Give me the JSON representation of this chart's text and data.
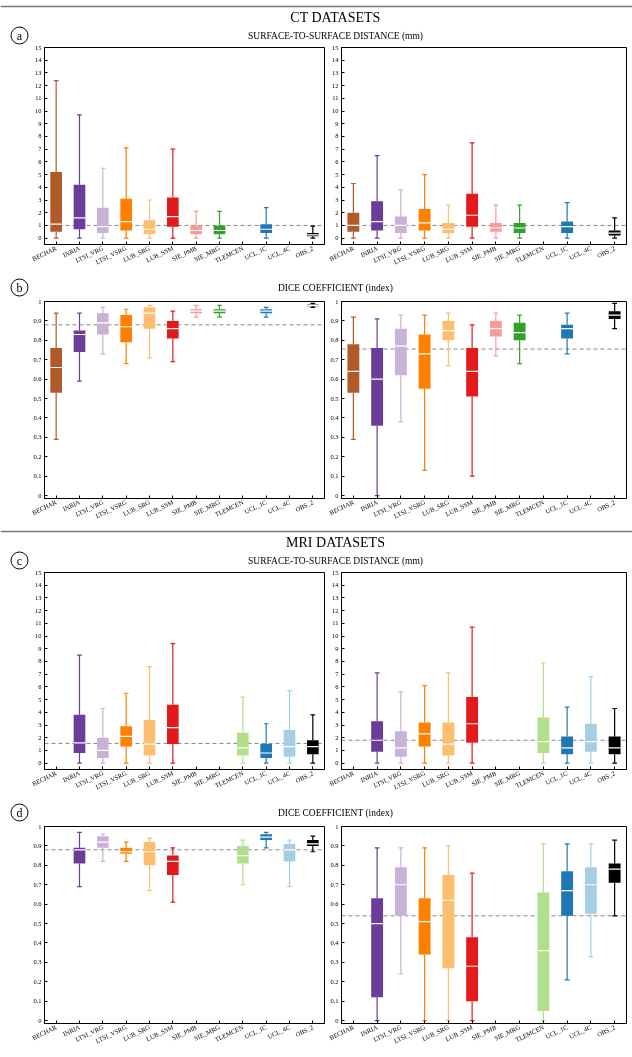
{
  "chart_data": [
    {
      "type": "box",
      "title": "CT DATASETS",
      "subtitle": "SURFACE-TO-SURFACE DISTANCE (mm)",
      "annotations": [
        "a"
      ],
      "categories": [
        "BECHAR",
        "INRIA",
        "LTSI_VRG",
        "LTSI_VSRG",
        "LUB_SRG",
        "LUB_SSM",
        "SIE_PMB",
        "SIE_MRG",
        "TLEMCEN",
        "UCL_1C",
        "UCL_4C",
        "OBS_2"
      ],
      "colors": [
        "#b15928",
        "#6a3d9a",
        "#cab2d6",
        "#ff7f00",
        "#fdbf6f",
        "#e31a1c",
        "#fb9a99",
        "#33a02c",
        null,
        "#1f78b4",
        null,
        "#000000"
      ],
      "boxes": [
        {
          "low": 0,
          "q1": 0.5,
          "median": 1.1,
          "q3": 5.2,
          "high": 12.4
        },
        {
          "low": 0,
          "q1": 0.7,
          "median": 1.6,
          "q3": 4.2,
          "high": 9.7
        },
        {
          "low": 0,
          "q1": 0.4,
          "median": 0.9,
          "q3": 2.4,
          "high": 5.5
        },
        {
          "low": 0,
          "q1": 0.6,
          "median": 1.3,
          "q3": 3.1,
          "high": 7.1
        },
        {
          "low": 0,
          "q1": 0.3,
          "median": 0.7,
          "q3": 1.4,
          "high": 3.0
        },
        {
          "low": 0,
          "q1": 0.9,
          "median": 1.7,
          "q3": 3.2,
          "high": 7.0
        },
        {
          "low": 0,
          "q1": 0.3,
          "median": 0.6,
          "q3": 1.0,
          "high": 2.1
        },
        {
          "low": 0,
          "q1": 0.3,
          "median": 0.6,
          "q3": 1.0,
          "high": 2.1
        },
        null,
        {
          "low": 0,
          "q1": 0.4,
          "median": 0.7,
          "q3": 1.1,
          "high": 2.4
        },
        null,
        {
          "low": 0,
          "q1": 0.15,
          "median": 0.25,
          "q3": 0.4,
          "high": 0.95
        }
      ],
      "ylim": [
        -0.5,
        15
      ],
      "yticks": [
        0,
        1,
        2,
        3,
        4,
        5,
        6,
        7,
        8,
        9,
        10,
        11,
        12,
        13,
        14,
        15
      ],
      "ref_lines": [
        {
          "axis": "y",
          "value": 1.0,
          "color": "#888888",
          "line_style": "dashed"
        }
      ]
    },
    {
      "type": "box",
      "categories": [
        "BECHAR",
        "INRIA",
        "LTSI_VRG",
        "LTSI_VSRG",
        "LUB_SRG",
        "LUB_SSM",
        "SIE_PMB",
        "SIE_MRG",
        "TLEMCEN",
        "UCL_1C",
        "UCL_4C",
        "OBS_2"
      ],
      "colors": [
        "#b15928",
        "#6a3d9a",
        "#cab2d6",
        "#ff7f00",
        "#fdbf6f",
        "#e31a1c",
        "#fb9a99",
        "#33a02c",
        null,
        "#1f78b4",
        null,
        "#000000"
      ],
      "boxes": [
        {
          "low": 0,
          "q1": 0.5,
          "median": 1.0,
          "q3": 2.0,
          "high": 4.3
        },
        {
          "low": 0,
          "q1": 0.6,
          "median": 1.3,
          "q3": 2.9,
          "high": 6.5
        },
        {
          "low": 0,
          "q1": 0.4,
          "median": 1.0,
          "q3": 1.7,
          "high": 3.8
        },
        {
          "low": 0,
          "q1": 0.6,
          "median": 1.2,
          "q3": 2.3,
          "high": 5.0
        },
        {
          "low": 0,
          "q1": 0.4,
          "median": 0.7,
          "q3": 1.2,
          "high": 2.6
        },
        {
          "low": 0,
          "q1": 0.9,
          "median": 1.8,
          "q3": 3.5,
          "high": 7.5
        },
        {
          "low": 0,
          "q1": 0.5,
          "median": 0.8,
          "q3": 1.2,
          "high": 2.6
        },
        {
          "low": 0,
          "q1": 0.4,
          "median": 0.8,
          "q3": 1.2,
          "high": 2.6
        },
        null,
        {
          "low": 0,
          "q1": 0.4,
          "median": 0.9,
          "q3": 1.3,
          "high": 2.8
        },
        null,
        {
          "low": 0,
          "q1": 0.2,
          "median": 0.4,
          "q3": 0.6,
          "high": 1.6
        }
      ],
      "ylim": [
        -0.5,
        15
      ],
      "yticks": [
        0,
        1,
        2,
        3,
        4,
        5,
        6,
        7,
        8,
        9,
        10,
        11,
        12,
        13,
        14,
        15
      ],
      "ref_lines": [
        {
          "axis": "y",
          "value": 1.0,
          "color": "#888888",
          "line_style": "dashed"
        }
      ]
    },
    {
      "type": "box",
      "subtitle": "DICE COEFFICIENT (index)",
      "annotations": [
        "b"
      ],
      "categories": [
        "BECHAR",
        "INRIA",
        "LTSI_VRG",
        "LTSI_VSRG",
        "LUB_SRG",
        "LUB_SSM",
        "SIE_PMB",
        "SIE_MRG",
        "TLEMCEN",
        "UCL_1C",
        "UCL_4C",
        "OBS_2"
      ],
      "colors": [
        "#b15928",
        "#6a3d9a",
        "#cab2d6",
        "#ff7f00",
        "#fdbf6f",
        "#e31a1c",
        "#fb9a99",
        "#33a02c",
        null,
        "#1f78b4",
        null,
        "#000000"
      ],
      "boxes": [
        {
          "low": 0.29,
          "q1": 0.53,
          "median": 0.66,
          "q3": 0.76,
          "high": 0.94
        },
        {
          "low": 0.59,
          "q1": 0.74,
          "median": 0.83,
          "q3": 0.85,
          "high": 0.94
        },
        {
          "low": 0.73,
          "q1": 0.83,
          "median": 0.89,
          "q3": 0.94,
          "high": 0.97
        },
        {
          "low": 0.68,
          "q1": 0.79,
          "median": 0.87,
          "q3": 0.93,
          "high": 0.96
        },
        {
          "low": 0.71,
          "q1": 0.86,
          "median": 0.94,
          "q3": 0.97,
          "high": 0.98
        },
        {
          "low": 0.69,
          "q1": 0.81,
          "median": 0.86,
          "q3": 0.9,
          "high": 0.95
        },
        {
          "low": 0.92,
          "q1": 0.94,
          "median": 0.95,
          "q3": 0.96,
          "high": 0.98
        },
        {
          "low": 0.92,
          "q1": 0.94,
          "median": 0.95,
          "q3": 0.96,
          "high": 0.98
        },
        null,
        {
          "low": 0.92,
          "q1": 0.94,
          "median": 0.95,
          "q3": 0.96,
          "high": 0.97
        },
        null,
        {
          "low": 0.97,
          "q1": 0.975,
          "median": 0.98,
          "q3": 0.985,
          "high": 0.99
        }
      ],
      "ylim": [
        -0.015,
        1
      ],
      "yticks": [
        0,
        0.1,
        0.2,
        0.3,
        0.4,
        0.5,
        0.6,
        0.7,
        0.8,
        0.9,
        1
      ],
      "ref_lines": [
        {
          "axis": "y",
          "value": 0.88,
          "color": "#888888",
          "line_style": "dashed"
        }
      ]
    },
    {
      "type": "box",
      "categories": [
        "BECHAR",
        "INRIA",
        "LTSI_VRG",
        "LTSI_VSRG",
        "LUB_SRG",
        "LUB_SSM",
        "SIE_PMB",
        "SIE_MRG",
        "TLEMCEN",
        "UCL_1C",
        "UCL_4C",
        "OBS_2"
      ],
      "colors": [
        "#b15928",
        "#6a3d9a",
        "#cab2d6",
        "#ff7f00",
        "#fdbf6f",
        "#e31a1c",
        "#fb9a99",
        "#33a02c",
        null,
        "#1f78b4",
        null,
        "#000000"
      ],
      "boxes": [
        {
          "low": 0.29,
          "q1": 0.53,
          "median": 0.64,
          "q3": 0.78,
          "high": 0.92
        },
        {
          "low": 0,
          "q1": 0.36,
          "median": 0.6,
          "q3": 0.76,
          "high": 0.91
        },
        {
          "low": 0.38,
          "q1": 0.62,
          "median": 0.77,
          "q3": 0.86,
          "high": 0.93
        },
        {
          "low": 0.13,
          "q1": 0.55,
          "median": 0.73,
          "q3": 0.83,
          "high": 0.93
        },
        {
          "low": 0.67,
          "q1": 0.8,
          "median": 0.85,
          "q3": 0.9,
          "high": 0.94
        },
        {
          "low": 0.1,
          "q1": 0.51,
          "median": 0.64,
          "q3": 0.76,
          "high": 0.88
        },
        {
          "low": 0.72,
          "q1": 0.82,
          "median": 0.86,
          "q3": 0.9,
          "high": 0.94
        },
        {
          "low": 0.68,
          "q1": 0.8,
          "median": 0.84,
          "q3": 0.89,
          "high": 0.93
        },
        null,
        {
          "low": 0.73,
          "q1": 0.81,
          "median": 0.86,
          "q3": 0.88,
          "high": 0.94
        },
        null,
        {
          "low": 0.86,
          "q1": 0.91,
          "median": 0.93,
          "q3": 0.95,
          "high": 0.99
        }
      ],
      "ylim": [
        -0.015,
        1
      ],
      "yticks": [
        0,
        0.1,
        0.2,
        0.3,
        0.4,
        0.5,
        0.6,
        0.7,
        0.8,
        0.9,
        1
      ],
      "ref_lines": [
        {
          "axis": "y",
          "value": 0.755,
          "color": "#888888",
          "line_style": "dashed"
        }
      ]
    },
    {
      "type": "box",
      "title": "MRI DATASETS",
      "subtitle": "SURFACE-TO-SURFACE DISTANCE (mm)",
      "annotations": [
        "c"
      ],
      "categories": [
        "BECHAR",
        "INRIA",
        "LTSI_VRG",
        "LTSI_VSRG",
        "LUB_SRG",
        "LUB_SSM",
        "SIE_PMB",
        "SIE_MRG",
        "TLEMCEN",
        "UCL_1C",
        "UCL_4C",
        "OBS_2"
      ],
      "colors": [
        null,
        "#6a3d9a",
        "#cab2d6",
        "#ff7f00",
        "#fdbf6f",
        "#e31a1c",
        null,
        null,
        "#b2df8a",
        "#1f78b4",
        "#a6cee3",
        "#000000"
      ],
      "boxes": [
        null,
        {
          "low": 0,
          "q1": 0.8,
          "median": 1.6,
          "q3": 3.8,
          "high": 8.5
        },
        {
          "low": 0,
          "q1": 0.4,
          "median": 1.0,
          "q3": 2.0,
          "high": 4.3
        },
        {
          "low": 0,
          "q1": 1.3,
          "median": 2.1,
          "q3": 2.9,
          "high": 5.5
        },
        {
          "low": 0,
          "q1": 0.6,
          "median": 1.5,
          "q3": 3.4,
          "high": 7.6
        },
        {
          "low": 0,
          "q1": 1.5,
          "median": 2.8,
          "q3": 4.6,
          "high": 9.4
        },
        null,
        null,
        {
          "low": 0,
          "q1": 0.6,
          "median": 1.2,
          "q3": 2.4,
          "high": 5.2
        },
        {
          "low": 0,
          "q1": 0.4,
          "median": 0.8,
          "q3": 1.5,
          "high": 3.1
        },
        {
          "low": 0,
          "q1": 0.5,
          "median": 1.3,
          "q3": 2.6,
          "high": 5.7
        },
        {
          "low": 0,
          "q1": 0.7,
          "median": 1.3,
          "q3": 1.8,
          "high": 3.8
        }
      ],
      "ylim": [
        -0.5,
        15
      ],
      "yticks": [
        0,
        1,
        2,
        3,
        4,
        5,
        6,
        7,
        8,
        9,
        10,
        11,
        12,
        13,
        14,
        15
      ],
      "ref_lines": [
        {
          "axis": "y",
          "value": 1.55,
          "color": "#888888",
          "line_style": "dashed"
        }
      ]
    },
    {
      "type": "box",
      "categories": [
        "BECHAR",
        "INRIA",
        "LTSI_VRG",
        "LTSI_VSRG",
        "LUB_SRG",
        "LUB_SSM",
        "SIE_PMB",
        "SIE_MRG",
        "TLEMCEN",
        "UCL_1C",
        "UCL_4C",
        "OBS_2"
      ],
      "colors": [
        null,
        "#6a3d9a",
        "#cab2d6",
        "#ff7f00",
        "#fdbf6f",
        "#e31a1c",
        null,
        null,
        "#b2df8a",
        "#1f78b4",
        "#a6cee3",
        "#000000"
      ],
      "boxes": [
        null,
        {
          "low": 0,
          "q1": 0.9,
          "median": 1.8,
          "q3": 3.3,
          "high": 7.1
        },
        {
          "low": 0,
          "q1": 0.5,
          "median": 1.2,
          "q3": 2.5,
          "high": 5.6
        },
        {
          "low": 0,
          "q1": 1.3,
          "median": 2.3,
          "q3": 3.2,
          "high": 6.1
        },
        {
          "low": 0,
          "q1": 0.6,
          "median": 1.5,
          "q3": 3.2,
          "high": 7.1
        },
        {
          "low": 0,
          "q1": 1.6,
          "median": 3.1,
          "q3": 5.2,
          "high": 10.7
        },
        null,
        null,
        {
          "low": 0,
          "q1": 0.8,
          "median": 1.7,
          "q3": 3.6,
          "high": 7.9
        },
        {
          "low": 0,
          "q1": 0.7,
          "median": 1.2,
          "q3": 2.1,
          "high": 4.4
        },
        {
          "low": 0,
          "q1": 0.9,
          "median": 1.7,
          "q3": 3.1,
          "high": 6.8
        },
        {
          "low": 0,
          "q1": 0.7,
          "median": 1.2,
          "q3": 2.1,
          "high": 4.3
        }
      ],
      "ylim": [
        -0.5,
        15
      ],
      "yticks": [
        0,
        1,
        2,
        3,
        4,
        5,
        6,
        7,
        8,
        9,
        10,
        11,
        12,
        13,
        14,
        15
      ],
      "ref_lines": [
        {
          "axis": "y",
          "value": 1.8,
          "color": "#888888",
          "line_style": "dashed"
        }
      ]
    },
    {
      "type": "box",
      "subtitle": "DICE COEFFICIENT (index)",
      "annotations": [
        "d"
      ],
      "categories": [
        "BECHAR",
        "INRIA",
        "LTSI_VRG",
        "LTSI_VSRG",
        "LUB_SRG",
        "LUB_SSM",
        "SIE_PMB",
        "SIE_MRG",
        "TLEMCEN",
        "UCL_1C",
        "UCL_4C",
        "OBS_2"
      ],
      "colors": [
        null,
        "#6a3d9a",
        "#cab2d6",
        "#ff7f00",
        "#fdbf6f",
        "#e31a1c",
        null,
        null,
        "#b2df8a",
        "#1f78b4",
        "#a6cee3",
        "#000000"
      ],
      "boxes": [
        null,
        {
          "low": 0.69,
          "q1": 0.81,
          "median": 0.88,
          "q3": 0.89,
          "high": 0.97
        },
        {
          "low": 0.82,
          "q1": 0.89,
          "median": 0.92,
          "q3": 0.95,
          "high": 0.96
        },
        {
          "low": 0.82,
          "q1": 0.86,
          "median": 0.87,
          "q3": 0.89,
          "high": 0.92
        },
        {
          "low": 0.67,
          "q1": 0.8,
          "median": 0.87,
          "q3": 0.92,
          "high": 0.94
        },
        {
          "low": 0.61,
          "q1": 0.75,
          "median": 0.82,
          "q3": 0.85,
          "high": 0.89
        },
        null,
        null,
        {
          "low": 0.7,
          "q1": 0.81,
          "median": 0.85,
          "q3": 0.9,
          "high": 0.93
        },
        {
          "low": 0.89,
          "q1": 0.93,
          "median": 0.945,
          "q3": 0.96,
          "high": 0.97
        },
        {
          "low": 0.69,
          "q1": 0.82,
          "median": 0.88,
          "q3": 0.91,
          "high": 0.93
        },
        {
          "low": 0.87,
          "q1": 0.9,
          "median": 0.91,
          "q3": 0.93,
          "high": 0.95
        }
      ],
      "ylim": [
        -0.015,
        1
      ],
      "yticks": [
        0,
        0.1,
        0.2,
        0.3,
        0.4,
        0.5,
        0.6,
        0.7,
        0.8,
        0.9,
        1
      ],
      "ref_lines": [
        {
          "axis": "y",
          "value": 0.88,
          "color": "#888888",
          "line_style": "dashed"
        }
      ]
    },
    {
      "type": "box",
      "categories": [
        "BECHAR",
        "INRIA",
        "LTSI_VRG",
        "LTSI_VSRG",
        "LUB_SRG",
        "LUB_SSM",
        "SIE_PMB",
        "SIE_MRG",
        "TLEMCEN",
        "UCL_1C",
        "UCL_4C",
        "OBS_2"
      ],
      "colors": [
        null,
        "#6a3d9a",
        "#cab2d6",
        "#ff7f00",
        "#fdbf6f",
        "#e31a1c",
        null,
        null,
        "#b2df8a",
        "#1f78b4",
        "#a6cee3",
        "#000000"
      ],
      "boxes": [
        null,
        {
          "low": 0,
          "q1": 0.12,
          "median": 0.5,
          "q3": 0.63,
          "high": 0.89
        },
        {
          "low": 0.24,
          "q1": 0.54,
          "median": 0.7,
          "q3": 0.79,
          "high": 0.89
        },
        {
          "low": 0,
          "q1": 0.34,
          "median": 0.51,
          "q3": 0.63,
          "high": 0.89
        },
        {
          "low": 0,
          "q1": 0.27,
          "median": 0.62,
          "q3": 0.75,
          "high": 0.9
        },
        {
          "low": 0,
          "q1": 0.1,
          "median": 0.28,
          "q3": 0.43,
          "high": 0.76
        },
        null,
        null,
        {
          "low": 0,
          "q1": 0.05,
          "median": 0.36,
          "q3": 0.66,
          "high": 0.91
        },
        {
          "low": 0.21,
          "q1": 0.54,
          "median": 0.67,
          "q3": 0.77,
          "high": 0.91
        },
        {
          "low": 0.33,
          "q1": 0.55,
          "median": 0.7,
          "q3": 0.79,
          "high": 0.91
        },
        {
          "low": 0.54,
          "q1": 0.71,
          "median": 0.78,
          "q3": 0.81,
          "high": 0.93
        }
      ],
      "ylim": [
        -0.015,
        1
      ],
      "yticks": [
        0,
        0.1,
        0.2,
        0.3,
        0.4,
        0.5,
        0.6,
        0.7,
        0.8,
        0.9,
        1
      ],
      "ref_lines": [
        {
          "axis": "y",
          "value": 0.54,
          "color": "#888888",
          "line_style": "dashed"
        }
      ]
    }
  ]
}
